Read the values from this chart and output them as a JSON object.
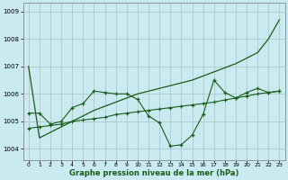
{
  "x": [
    0,
    1,
    2,
    3,
    4,
    5,
    6,
    7,
    8,
    9,
    10,
    11,
    12,
    13,
    14,
    15,
    16,
    17,
    18,
    19,
    20,
    21,
    22,
    23
  ],
  "line1": [
    1007.0,
    1004.4,
    1004.6,
    1004.8,
    1005.0,
    1005.2,
    1005.4,
    1005.55,
    1005.7,
    1005.85,
    1006.0,
    1006.1,
    1006.2,
    1006.3,
    1006.4,
    1006.5,
    1006.65,
    1006.8,
    1006.95,
    1007.1,
    1007.3,
    1007.5,
    1008.0,
    1008.7
  ],
  "line2": [
    1005.3,
    1005.3,
    1004.9,
    1005.0,
    1005.5,
    1005.65,
    1006.1,
    1006.05,
    1006.0,
    1006.0,
    1005.8,
    1005.2,
    1004.95,
    1004.1,
    1004.15,
    1004.5,
    1005.25,
    1006.5,
    1006.05,
    1005.85,
    1006.05,
    1006.2,
    1006.05,
    1006.1
  ],
  "line3": [
    1004.75,
    1004.8,
    1004.85,
    1004.9,
    1005.0,
    1005.05,
    1005.1,
    1005.15,
    1005.25,
    1005.3,
    1005.35,
    1005.4,
    1005.45,
    1005.5,
    1005.55,
    1005.6,
    1005.65,
    1005.7,
    1005.78,
    1005.85,
    1005.92,
    1006.0,
    1006.05,
    1006.1
  ],
  "bg_color": "#c8eaf0",
  "line_color": "#1a5c1a",
  "grid_color": "#b0c8c8",
  "xlabel": "Graphe pression niveau de la mer (hPa)",
  "ylim": [
    1003.6,
    1009.3
  ],
  "xlim": [
    -0.5,
    23.5
  ],
  "yticks": [
    1004,
    1005,
    1006,
    1007,
    1008,
    1009
  ],
  "xticks": [
    0,
    1,
    2,
    3,
    4,
    5,
    6,
    7,
    8,
    9,
    10,
    11,
    12,
    13,
    14,
    15,
    16,
    17,
    18,
    19,
    20,
    21,
    22,
    23
  ]
}
